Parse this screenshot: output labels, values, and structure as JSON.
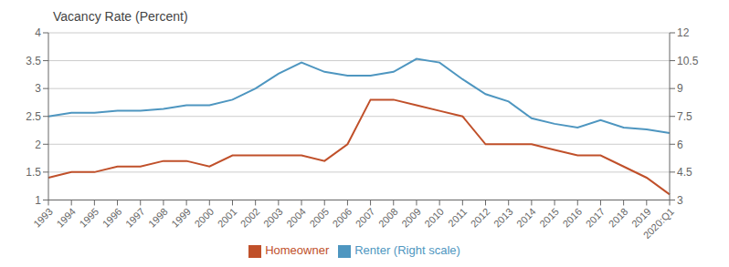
{
  "chart_data": {
    "type": "line",
    "title": "Vacancy Rate (Percent)",
    "categories": [
      "1993",
      "1994",
      "1995",
      "1996",
      "1997",
      "1998",
      "1999",
      "2000",
      "2001",
      "2002",
      "2003",
      "2004",
      "2005",
      "2006",
      "2007",
      "2008",
      "2009",
      "2010",
      "2011",
      "2012",
      "2013",
      "2014",
      "2015",
      "2016",
      "2017",
      "2018",
      "2019",
      "2020:Q1"
    ],
    "series": [
      {
        "name": "Homeowner",
        "color": "#c0502a",
        "values": [
          1.4,
          1.5,
          1.5,
          1.6,
          1.6,
          1.7,
          1.7,
          1.6,
          1.8,
          1.8,
          1.8,
          1.8,
          1.7,
          2.0,
          2.8,
          2.8,
          2.7,
          2.6,
          2.5,
          2.0,
          2.0,
          2.0,
          1.9,
          1.8,
          1.8,
          1.6,
          1.4,
          1.1
        ]
      },
      {
        "name": "Renter (Right scale)",
        "color": "#4e96c0",
        "axis": "y2",
        "values": [
          7.5,
          7.7,
          7.7,
          7.8,
          7.8,
          7.9,
          8.1,
          8.1,
          8.4,
          9.0,
          9.8,
          10.4,
          9.9,
          9.7,
          9.7,
          9.9,
          10.6,
          10.4,
          9.5,
          8.7,
          8.3,
          7.4,
          7.1,
          6.9,
          7.3,
          6.9,
          6.8,
          6.6
        ]
      }
    ],
    "ylim": [
      1,
      4
    ],
    "yticks": [
      1,
      1.5,
      2,
      2.5,
      3,
      3.5,
      4
    ],
    "y2lim": [
      3,
      12
    ],
    "y2ticks": [
      3,
      4.5,
      6,
      7.5,
      9,
      10.5,
      12
    ],
    "grid": true,
    "legend": "bottom"
  }
}
